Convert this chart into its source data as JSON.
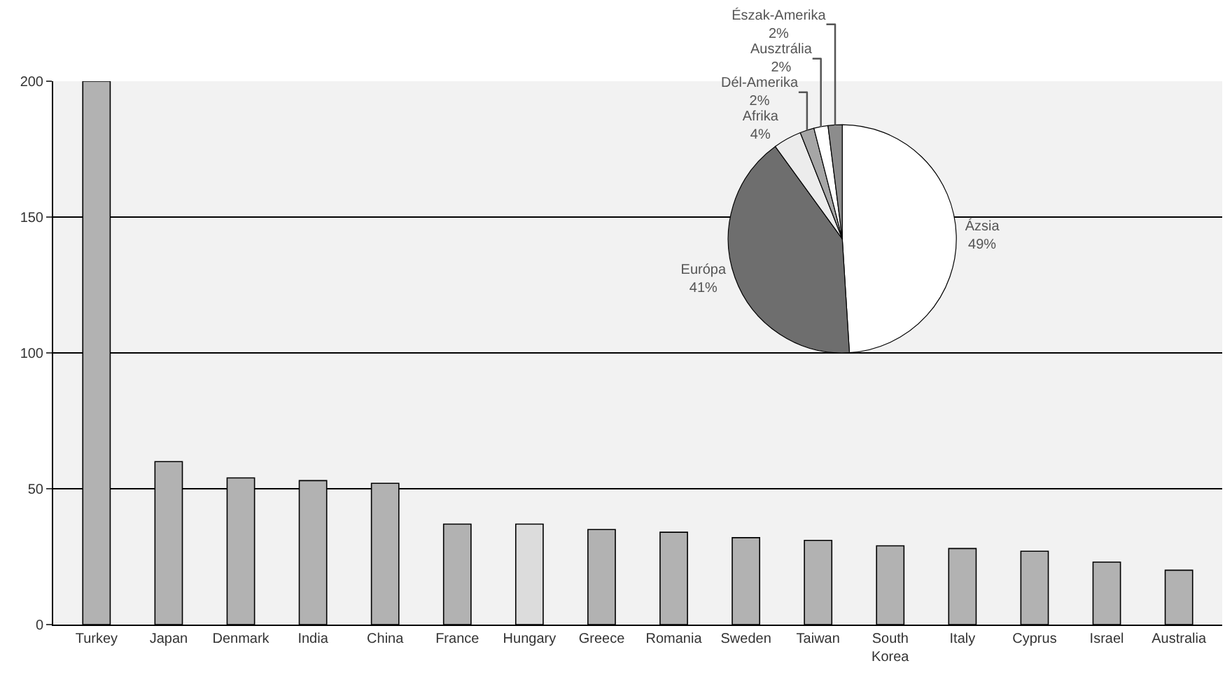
{
  "chart_data": [
    {
      "type": "bar",
      "categories": [
        "Turkey",
        "Japan",
        "Denmark",
        "India",
        "China",
        "France",
        "Hungary",
        "Greece",
        "Romania",
        "Sweden",
        "Taiwan",
        "South Korea",
        "Italy",
        "Cyprus",
        "Israel",
        "Australia"
      ],
      "values": [
        200,
        60,
        54,
        53,
        52,
        37,
        37,
        35,
        34,
        32,
        31,
        29,
        28,
        27,
        23,
        20
      ],
      "colors": [
        "#b2b2b2",
        "#b2b2b2",
        "#b2b2b2",
        "#b2b2b2",
        "#b2b2b2",
        "#b2b2b2",
        "#dcdcdc",
        "#b2b2b2",
        "#b2b2b2",
        "#b2b2b2",
        "#b2b2b2",
        "#b2b2b2",
        "#b2b2b2",
        "#b2b2b2",
        "#b2b2b2",
        "#b2b2b2"
      ],
      "ylim": [
        0,
        200
      ],
      "yticks": [
        0,
        50,
        100,
        150,
        200
      ],
      "grid": "y"
    },
    {
      "type": "pie",
      "categories": [
        "Ázsia",
        "Európa",
        "Afrika",
        "Dél-Amerika",
        "Ausztrália",
        "Észak-Amerika"
      ],
      "values": [
        49,
        41,
        4,
        2,
        2,
        2
      ],
      "value_labels": [
        "49%",
        "41%",
        "4%",
        "2%",
        "2%",
        "2%"
      ],
      "colors": [
        "#ffffff",
        "#6e6e6e",
        "#ececec",
        "#a6a6a6",
        "#ffffff",
        "#8c8c8c"
      ]
    }
  ]
}
